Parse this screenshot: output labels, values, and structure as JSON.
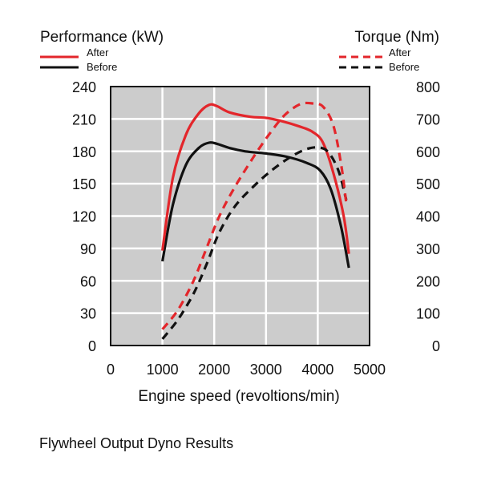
{
  "chart_data": {
    "type": "line",
    "caption": "Flywheel Output Dyno Results",
    "xlabel": "Engine speed (revoltions/min)",
    "xlim": [
      0,
      5000
    ],
    "x_ticks": [
      "0",
      "1000",
      "2000",
      "3000",
      "4000",
      "5000"
    ],
    "left_axis": {
      "title": "Performance (kW)",
      "ylim": [
        0,
        240
      ],
      "ticks": [
        "0",
        "30",
        "60",
        "90",
        "120",
        "150",
        "180",
        "210",
        "240"
      ]
    },
    "right_axis": {
      "title": "Torque (Nm)",
      "ylim": [
        0,
        800
      ],
      "ticks": [
        "0",
        "100",
        "200",
        "300",
        "400",
        "500",
        "600",
        "700",
        "800"
      ]
    },
    "legend": {
      "performance": [
        {
          "label": "After",
          "color": "#e3262b",
          "style": "solid"
        },
        {
          "label": "Before",
          "color": "#111111",
          "style": "solid"
        }
      ],
      "torque": [
        {
          "label": "After",
          "color": "#e3262b",
          "style": "dashed"
        },
        {
          "label": "Before",
          "color": "#111111",
          "style": "dashed"
        }
      ]
    },
    "series": [
      {
        "name": "Performance After",
        "axis": "left",
        "color": "#e3262b",
        "style": "solid",
        "points": [
          [
            1000,
            88
          ],
          [
            1200,
            155
          ],
          [
            1450,
            195
          ],
          [
            1700,
            215
          ],
          [
            1900,
            223
          ],
          [
            2050,
            222
          ],
          [
            2300,
            216
          ],
          [
            2700,
            212
          ],
          [
            3000,
            211
          ],
          [
            3300,
            208
          ],
          [
            3650,
            203
          ],
          [
            3900,
            198
          ],
          [
            4100,
            188
          ],
          [
            4300,
            160
          ],
          [
            4500,
            120
          ],
          [
            4600,
            85
          ]
        ]
      },
      {
        "name": "Performance Before",
        "axis": "left",
        "color": "#111111",
        "style": "solid",
        "points": [
          [
            1000,
            78
          ],
          [
            1200,
            130
          ],
          [
            1450,
            167
          ],
          [
            1700,
            183
          ],
          [
            1900,
            188
          ],
          [
            2050,
            187
          ],
          [
            2300,
            183
          ],
          [
            2600,
            180
          ],
          [
            3000,
            178
          ],
          [
            3400,
            175
          ],
          [
            3800,
            169
          ],
          [
            4050,
            162
          ],
          [
            4250,
            145
          ],
          [
            4450,
            110
          ],
          [
            4600,
            72
          ]
        ]
      },
      {
        "name": "Torque After",
        "axis": "right",
        "color": "#e3262b",
        "style": "dashed",
        "points": [
          [
            1000,
            50
          ],
          [
            1300,
            110
          ],
          [
            1600,
            200
          ],
          [
            1850,
            300
          ],
          [
            2100,
            400
          ],
          [
            2400,
            490
          ],
          [
            2750,
            580
          ],
          [
            3050,
            650
          ],
          [
            3350,
            710
          ],
          [
            3650,
            745
          ],
          [
            3900,
            748
          ],
          [
            4100,
            738
          ],
          [
            4300,
            680
          ],
          [
            4450,
            560
          ],
          [
            4550,
            440
          ]
        ]
      },
      {
        "name": "Torque Before",
        "axis": "right",
        "color": "#111111",
        "style": "dashed",
        "points": [
          [
            1000,
            20
          ],
          [
            1300,
            80
          ],
          [
            1600,
            160
          ],
          [
            1850,
            250
          ],
          [
            2100,
            350
          ],
          [
            2400,
            430
          ],
          [
            2750,
            490
          ],
          [
            3100,
            540
          ],
          [
            3450,
            580
          ],
          [
            3750,
            605
          ],
          [
            4000,
            612
          ],
          [
            4200,
            598
          ],
          [
            4400,
            540
          ],
          [
            4550,
            450
          ]
        ]
      }
    ]
  }
}
